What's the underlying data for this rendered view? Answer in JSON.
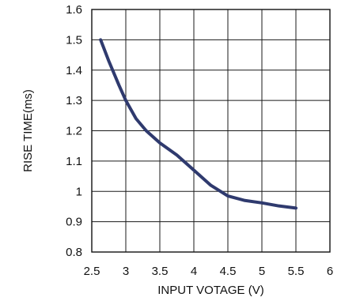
{
  "chart_data": {
    "type": "line",
    "title": "",
    "xlabel": "INPUT VOTAGE (V)",
    "ylabel": "RISE TIME(ms)",
    "xlim": [
      2.5,
      6
    ],
    "ylim": [
      0.8,
      1.6
    ],
    "x_ticks": [
      "2.5",
      "3",
      "3.5",
      "4",
      "4.5",
      "5",
      "5.5",
      "6"
    ],
    "y_ticks": [
      "0.8",
      "0.9",
      "1",
      "1.1",
      "1.2",
      "1.3",
      "1.4",
      "1.5",
      "1.6"
    ],
    "grid": true,
    "legend": false,
    "series": [
      {
        "color": "#2f3a6e",
        "points": [
          [
            2.63,
            1.5
          ],
          [
            2.75,
            1.43
          ],
          [
            2.9,
            1.35
          ],
          [
            3.0,
            1.3
          ],
          [
            3.15,
            1.24
          ],
          [
            3.3,
            1.2
          ],
          [
            3.5,
            1.16
          ],
          [
            3.75,
            1.12
          ],
          [
            4.0,
            1.07
          ],
          [
            4.25,
            1.02
          ],
          [
            4.5,
            0.985
          ],
          [
            4.75,
            0.97
          ],
          [
            5.0,
            0.962
          ],
          [
            5.25,
            0.952
          ],
          [
            5.5,
            0.945
          ]
        ]
      }
    ]
  }
}
